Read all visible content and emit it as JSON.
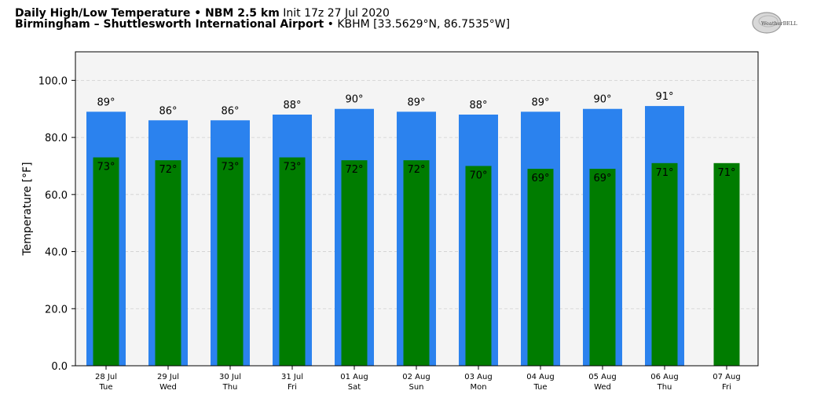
{
  "header": {
    "title_bold": "Daily High/Low Temperature • NBM 2.5 km",
    "title_rest": "Init 17z 27 Jul 2020",
    "location_bold": "Birmingham – Shuttlesworth International Airport",
    "location_rest": "• KBHM [33.5629°N, 86.7535°W]"
  },
  "logo": {
    "text": "WeatherBELL"
  },
  "colors": {
    "high": "#2b82ee",
    "low": "#007c00",
    "plot_bg": "#f4f4f4",
    "grid": "#cfcfcf"
  },
  "chart_data": {
    "type": "bar",
    "title": "Daily High/Low Temperature • NBM 2.5 km",
    "ylabel": "Temperature [°F]",
    "ylim": [
      0,
      110
    ],
    "yticks": [
      "0.0",
      "20.0",
      "40.0",
      "60.0",
      "80.0",
      "100.0"
    ],
    "grid": true,
    "categories": [
      {
        "date": "28 Jul",
        "day": "Tue"
      },
      {
        "date": "29 Jul",
        "day": "Wed"
      },
      {
        "date": "30 Jul",
        "day": "Thu"
      },
      {
        "date": "31 Jul",
        "day": "Fri"
      },
      {
        "date": "01 Aug",
        "day": "Sat"
      },
      {
        "date": "02 Aug",
        "day": "Sun"
      },
      {
        "date": "03 Aug",
        "day": "Mon"
      },
      {
        "date": "04 Aug",
        "day": "Tue"
      },
      {
        "date": "05 Aug",
        "day": "Wed"
      },
      {
        "date": "06 Aug",
        "day": "Thu"
      },
      {
        "date": "07 Aug",
        "day": "Fri"
      }
    ],
    "series": [
      {
        "name": "High",
        "values": [
          89,
          86,
          86,
          88,
          90,
          89,
          88,
          89,
          90,
          91,
          null
        ],
        "labels": [
          "89°",
          "86°",
          "86°",
          "88°",
          "90°",
          "89°",
          "88°",
          "89°",
          "90°",
          "91°",
          ""
        ]
      },
      {
        "name": "Low",
        "values": [
          73,
          72,
          73,
          73,
          72,
          72,
          70,
          69,
          69,
          71,
          71
        ],
        "labels": [
          "73°",
          "72°",
          "73°",
          "73°",
          "72°",
          "72°",
          "70°",
          "69°",
          "69°",
          "71°",
          "71°"
        ]
      }
    ]
  }
}
